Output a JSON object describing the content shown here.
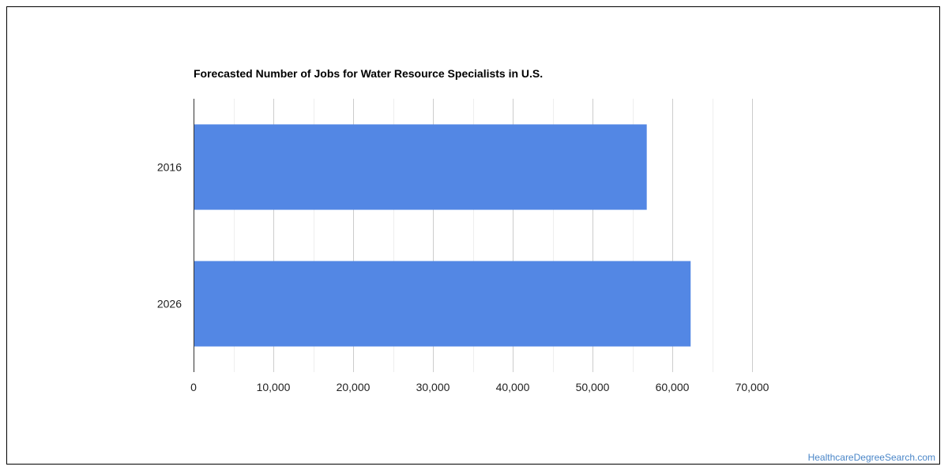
{
  "chart_data": {
    "type": "bar",
    "orientation": "horizontal",
    "title": "Forecasted Number of Jobs for Water Resource Specialists in U.S.",
    "categories": [
      "2016",
      "2026"
    ],
    "values": [
      56800,
      62300
    ],
    "xlim": [
      0,
      70000
    ],
    "x_ticks": [
      0,
      10000,
      20000,
      30000,
      40000,
      50000,
      60000,
      70000
    ],
    "x_tick_labels": [
      "0",
      "10,000",
      "20,000",
      "30,000",
      "40,000",
      "50,000",
      "60,000",
      "70,000"
    ],
    "bar_color": "#5387e4",
    "grid": true,
    "legend": "none"
  },
  "watermark": "HealthcareDegreeSearch.com"
}
